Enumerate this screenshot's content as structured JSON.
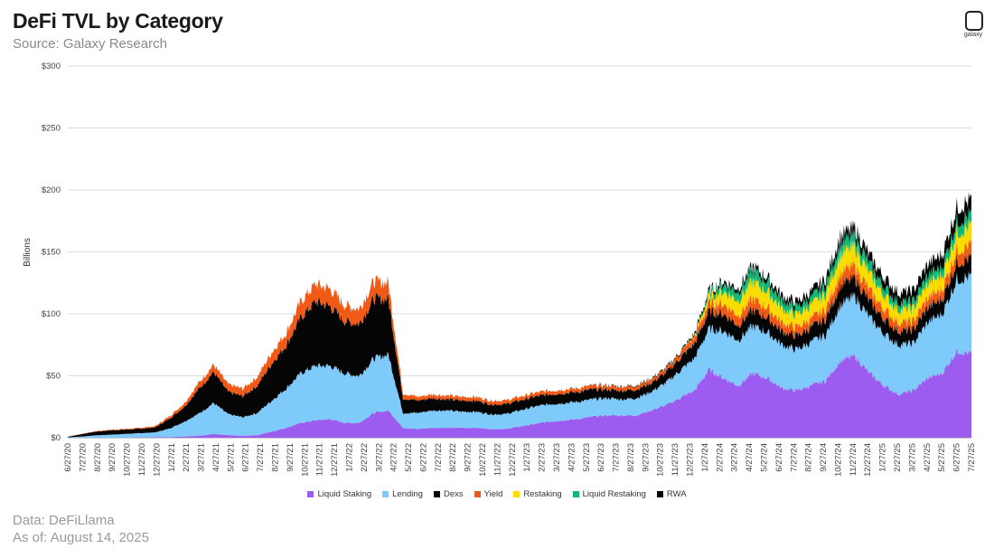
{
  "header": {
    "title": "DeFi TVL by Category",
    "subtitle": "Source: Galaxy Research"
  },
  "footer": {
    "data_source": "Data: DeFiLlama",
    "as_of": "As of: August 14, 2025"
  },
  "logo": {
    "text": "galaxy",
    "icon": "galaxy-logo-icon"
  },
  "chart_data": {
    "type": "area",
    "stacked": true,
    "title": "DeFi TVL by Category",
    "subtitle": "Source: Galaxy Research",
    "xlabel": "",
    "ylabel": "Billions",
    "ylim": [
      0,
      300
    ],
    "yticks": [
      "$0",
      "$50",
      "$100",
      "$150",
      "$200",
      "$250",
      "$300"
    ],
    "ytick_values": [
      0,
      50,
      100,
      150,
      200,
      250,
      300
    ],
    "grid": true,
    "legend_position": "bottom",
    "x_tick_labels": [
      "6/27/20",
      "7/27/20",
      "8/27/20",
      "9/27/20",
      "10/27/20",
      "11/27/20",
      "12/27/20",
      "1/27/21",
      "2/27/21",
      "3/27/21",
      "4/27/21",
      "5/27/21",
      "6/27/21",
      "7/27/21",
      "8/27/21",
      "9/27/21",
      "10/27/21",
      "11/27/21",
      "12/27/21",
      "1/27/22",
      "2/27/22",
      "3/27/22",
      "4/27/22",
      "5/27/22",
      "6/27/22",
      "7/27/22",
      "8/27/22",
      "9/27/22",
      "10/27/22",
      "11/27/22",
      "12/27/22",
      "1/27/23",
      "2/27/23",
      "3/27/23",
      "4/27/23",
      "5/27/23",
      "6/27/23",
      "7/27/23",
      "8/27/23",
      "9/27/23",
      "10/27/23",
      "11/27/23",
      "12/27/23",
      "1/27/24",
      "2/27/24",
      "3/27/24",
      "4/27/24",
      "5/27/24",
      "6/27/24",
      "7/27/24",
      "8/27/24",
      "9/27/24",
      "10/27/24",
      "11/27/24",
      "12/27/24",
      "1/27/25",
      "2/27/25",
      "3/27/25",
      "4/27/25",
      "5/27/25",
      "6/27/25",
      "7/27/25"
    ],
    "x": [
      "6/27/20",
      "7/27/20",
      "8/27/20",
      "9/27/20",
      "10/27/20",
      "11/27/20",
      "12/27/20",
      "1/27/21",
      "2/27/21",
      "3/27/21",
      "4/27/21",
      "5/27/21",
      "6/27/21",
      "7/27/21",
      "8/27/21",
      "9/27/21",
      "10/27/21",
      "11/27/21",
      "12/27/21",
      "1/27/22",
      "2/27/22",
      "3/27/22",
      "4/27/22",
      "5/27/22",
      "6/27/22",
      "7/27/22",
      "8/27/22",
      "9/27/22",
      "10/27/22",
      "11/27/22",
      "12/27/22",
      "1/27/23",
      "2/27/23",
      "3/27/23",
      "4/27/23",
      "5/27/23",
      "6/27/23",
      "7/27/23",
      "8/27/23",
      "9/27/23",
      "10/27/23",
      "11/27/23",
      "12/27/23",
      "1/27/24",
      "2/27/24",
      "3/27/24",
      "4/27/24",
      "5/27/24",
      "6/27/24",
      "7/27/24",
      "8/27/24",
      "9/27/24",
      "10/27/24",
      "11/27/24",
      "12/27/24",
      "1/27/25",
      "2/27/25",
      "3/27/25",
      "4/27/25",
      "5/27/25",
      "6/27/25",
      "7/27/25",
      "8/14/25"
    ],
    "series": [
      {
        "name": "Liquid Staking",
        "color": "#9d5cf0",
        "values": [
          0,
          0,
          0,
          0,
          0.1,
          0.2,
          0.3,
          0.5,
          1,
          1.5,
          3,
          2,
          1.5,
          2,
          5,
          8,
          12,
          14,
          15,
          12,
          12,
          20,
          22,
          8,
          7,
          8,
          8,
          8,
          8,
          7,
          7,
          9,
          11,
          13,
          14,
          15,
          17,
          18,
          18,
          18,
          22,
          26,
          32,
          38,
          55,
          48,
          42,
          52,
          48,
          40,
          38,
          42,
          46,
          62,
          66,
          52,
          42,
          35,
          38,
          48,
          52,
          70,
          68
        ]
      },
      {
        "name": "Lending",
        "color": "#7ecbfb",
        "values": [
          0.3,
          1,
          2,
          2.5,
          3,
          3.5,
          4,
          7,
          12,
          18,
          25,
          17,
          15,
          18,
          25,
          32,
          40,
          44,
          43,
          40,
          38,
          44,
          45,
          12,
          13,
          14,
          14,
          13,
          13,
          12,
          12,
          13,
          14,
          14,
          14,
          14,
          14,
          14,
          13,
          14,
          15,
          18,
          22,
          26,
          33,
          38,
          37,
          38,
          37,
          35,
          33,
          35,
          37,
          45,
          48,
          45,
          42,
          40,
          38,
          45,
          48,
          58,
          62
        ]
      },
      {
        "name": "Dexs",
        "color": "#050505",
        "values": [
          0.5,
          2,
          3,
          3.5,
          3.5,
          3.5,
          4,
          8,
          12,
          20,
          25,
          18,
          17,
          22,
          30,
          35,
          45,
          52,
          48,
          42,
          42,
          48,
          45,
          12,
          10,
          10,
          9,
          9,
          9,
          8,
          8,
          8,
          8,
          8,
          8,
          8,
          8,
          7,
          7,
          7,
          7,
          8,
          10,
          12,
          14,
          14,
          12,
          13,
          12,
          11,
          11,
          12,
          13,
          16,
          15,
          13,
          12,
          11,
          11,
          12,
          12,
          14,
          15
        ]
      },
      {
        "name": "Yield",
        "color": "#f15a16",
        "values": [
          0,
          0.2,
          0.4,
          0.5,
          0.5,
          0.8,
          1,
          2,
          3,
          5,
          6,
          6,
          6,
          7,
          9,
          10,
          13,
          14,
          14,
          13,
          12,
          14,
          13,
          4,
          3,
          3,
          3,
          3,
          3,
          3,
          3,
          3,
          3,
          3,
          3,
          3,
          3,
          3,
          3,
          3,
          3,
          3,
          4,
          5,
          7,
          8,
          8,
          9,
          8,
          7,
          7,
          7,
          8,
          10,
          10,
          9,
          8,
          7,
          7,
          8,
          8,
          10,
          11
        ]
      },
      {
        "name": "Restaking",
        "color": "#fadc00",
        "values": [
          0,
          0,
          0,
          0,
          0,
          0,
          0,
          0,
          0,
          0,
          0,
          0,
          0,
          0,
          0,
          0,
          0,
          0,
          0,
          0,
          0,
          0,
          0,
          0,
          0,
          0,
          0,
          0,
          0,
          0,
          0,
          0,
          0,
          0,
          0,
          0,
          0,
          0,
          0,
          0,
          0,
          0,
          0,
          1,
          5,
          10,
          12,
          14,
          13,
          11,
          10,
          11,
          12,
          15,
          15,
          13,
          11,
          10,
          10,
          11,
          11,
          14,
          15
        ]
      },
      {
        "name": "Liquid Restaking",
        "color": "#12b878",
        "values": [
          0,
          0,
          0,
          0,
          0,
          0,
          0,
          0,
          0,
          0,
          0,
          0,
          0,
          0,
          0,
          0,
          0,
          0,
          0,
          0,
          0,
          0,
          0,
          0,
          0,
          0,
          0,
          0,
          0,
          0,
          0,
          0,
          0,
          0,
          0,
          0,
          0,
          0,
          0,
          0,
          0,
          0,
          0,
          0.5,
          3,
          6,
          7,
          9,
          8,
          7,
          6,
          6,
          7,
          9,
          9,
          8,
          7,
          6,
          6,
          7,
          7,
          9,
          9
        ]
      },
      {
        "name": "RWA",
        "color": "#050505",
        "values": [
          0,
          0,
          0,
          0,
          0,
          0,
          0,
          0,
          0,
          0,
          0,
          0,
          0,
          0,
          0,
          0,
          0,
          0,
          0,
          0,
          0,
          0,
          0,
          0,
          0,
          0,
          0,
          0,
          0,
          0,
          0,
          0,
          0,
          0,
          0,
          0,
          0.2,
          0.3,
          0.4,
          0.5,
          0.6,
          0.8,
          1,
          1.5,
          2,
          2.5,
          3,
          3.5,
          3.5,
          4,
          4.5,
          5,
          5.5,
          6,
          6.5,
          7,
          7.5,
          8,
          8.5,
          9,
          10,
          11,
          12
        ]
      }
    ]
  }
}
